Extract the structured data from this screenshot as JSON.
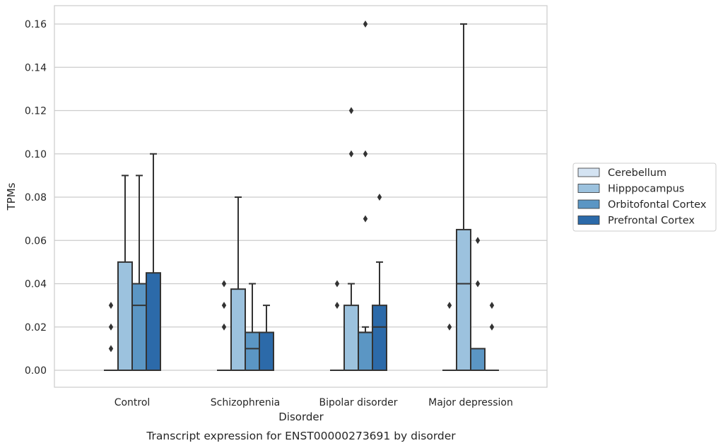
{
  "chart_data": {
    "type": "box",
    "title": "",
    "caption": "Transcript expression for ENST00000273691 by disorder",
    "xlabel": "Disorder",
    "ylabel": "TPMs",
    "ylim": [
      -0.008,
      0.168
    ],
    "yticks": [
      0.0,
      0.02,
      0.04,
      0.06,
      0.08,
      0.1,
      0.12,
      0.14,
      0.16
    ],
    "ytick_labels": [
      "0.00",
      "0.02",
      "0.04",
      "0.06",
      "0.08",
      "0.10",
      "0.12",
      "0.14",
      "0.16"
    ],
    "grid": "horizontal",
    "legend_position": "right",
    "categories": [
      "Control",
      "Schizophrenia",
      "Bipolar disorder",
      "Major depression"
    ],
    "series": [
      {
        "name": "Cerebellum",
        "color": "#d4e3f2",
        "boxes": [
          {
            "category": "Control",
            "whislo": 0,
            "q1": 0,
            "med": 0,
            "q3": 0,
            "whishi": 0,
            "fliers": [
              0.01,
              0.02,
              0.03
            ]
          },
          {
            "category": "Schizophrenia",
            "whislo": 0,
            "q1": 0,
            "med": 0,
            "q3": 0,
            "whishi": 0,
            "fliers": [
              0.02,
              0.03,
              0.04
            ]
          },
          {
            "category": "Bipolar disorder",
            "whislo": 0,
            "q1": 0,
            "med": 0,
            "q3": 0,
            "whishi": 0,
            "fliers": [
              0.03,
              0.04
            ]
          },
          {
            "category": "Major depression",
            "whislo": 0,
            "q1": 0,
            "med": 0,
            "q3": 0,
            "whishi": 0,
            "fliers": [
              0.02,
              0.03
            ]
          }
        ]
      },
      {
        "name": "Hipppocampus",
        "color": "#9cc2de",
        "boxes": [
          {
            "category": "Control",
            "whislo": 0,
            "q1": 0,
            "med": 0,
            "q3": 0.05,
            "whishi": 0.09,
            "fliers": []
          },
          {
            "category": "Schizophrenia",
            "whislo": 0,
            "q1": 0,
            "med": 0,
            "q3": 0.0375,
            "whishi": 0.08,
            "fliers": []
          },
          {
            "category": "Bipolar disorder",
            "whislo": 0,
            "q1": 0,
            "med": 0,
            "q3": 0.03,
            "whishi": 0.04,
            "fliers": [
              0.1,
              0.12
            ]
          },
          {
            "category": "Major depression",
            "whislo": 0,
            "q1": 0,
            "med": 0.04,
            "q3": 0.065,
            "whishi": 0.16,
            "fliers": []
          }
        ]
      },
      {
        "name": "Orbitofontal Cortex",
        "color": "#5b96c4",
        "boxes": [
          {
            "category": "Control",
            "whislo": 0,
            "q1": 0,
            "med": 0.03,
            "q3": 0.04,
            "whishi": 0.09,
            "fliers": []
          },
          {
            "category": "Schizophrenia",
            "whislo": 0,
            "q1": 0,
            "med": 0.01,
            "q3": 0.0175,
            "whishi": 0.04,
            "fliers": []
          },
          {
            "category": "Bipolar disorder",
            "whislo": 0,
            "q1": 0,
            "med": 0.0175,
            "q3": 0.0175,
            "whishi": 0.02,
            "fliers": [
              0.07,
              0.1,
              0.16
            ]
          },
          {
            "category": "Major depression",
            "whislo": 0,
            "q1": 0,
            "med": 0,
            "q3": 0.01,
            "whishi": 0.01,
            "fliers": [
              0.04,
              0.06
            ]
          }
        ]
      },
      {
        "name": "Prefrontal Cortex",
        "color": "#2c6aa9",
        "boxes": [
          {
            "category": "Control",
            "whislo": 0,
            "q1": 0,
            "med": 0,
            "q3": 0.045,
            "whishi": 0.1,
            "fliers": []
          },
          {
            "category": "Schizophrenia",
            "whislo": 0,
            "q1": 0,
            "med": 0,
            "q3": 0.0175,
            "whishi": 0.03,
            "fliers": []
          },
          {
            "category": "Bipolar disorder",
            "whislo": 0,
            "q1": 0,
            "med": 0.02,
            "q3": 0.03,
            "whishi": 0.05,
            "fliers": [
              0.08
            ]
          },
          {
            "category": "Major depression",
            "whislo": 0,
            "q1": 0,
            "med": 0,
            "q3": 0,
            "whishi": 0,
            "fliers": [
              0.02,
              0.03
            ]
          }
        ]
      }
    ]
  }
}
